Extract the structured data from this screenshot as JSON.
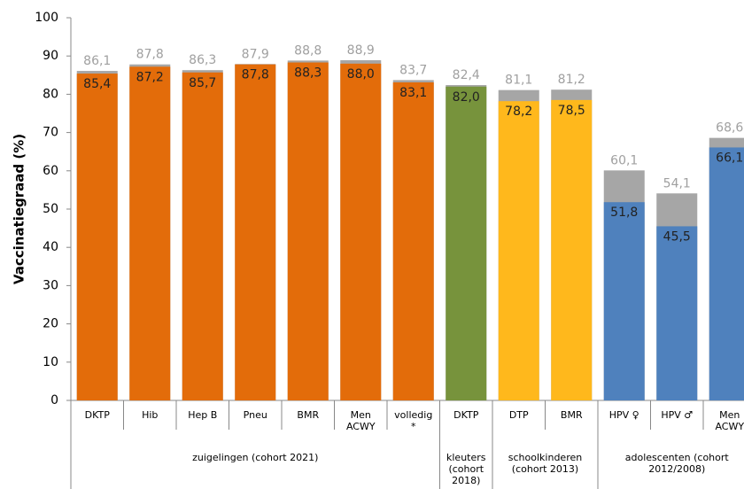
{
  "chart_data": {
    "type": "bar",
    "y_label": "Vaccinatiegraad (%)",
    "categories": [
      "DKTP",
      "Hib",
      "Hep B",
      "Pneu",
      "BMR",
      "Men ACWY",
      "volledig *",
      "DKTP",
      "DTP",
      "BMR",
      "HPV ♀",
      "HPV ♂",
      "Men ACWY"
    ],
    "groups": [
      {
        "label": "zuigelingen (cohort 2021)",
        "span": [
          0,
          6
        ]
      },
      {
        "label": "kleuters (cohort 2018)",
        "span": [
          7,
          7
        ]
      },
      {
        "label": "schoolkinderen (cohort 2013)",
        "span": [
          8,
          9
        ]
      },
      {
        "label": "adolescenten (cohort 2012/2008)",
        "span": [
          10,
          12
        ]
      }
    ],
    "values": [
      85.4,
      87.2,
      85.7,
      87.8,
      88.3,
      88.0,
      83.1,
      82.0,
      78.2,
      78.5,
      51.8,
      45.5,
      66.1
    ],
    "value_labels": [
      "85,4",
      "87,2",
      "85,7",
      "87,8",
      "88,3",
      "88,0",
      "83,1",
      "82,0",
      "78,2",
      "78,5",
      "51,8",
      "45,5",
      "66,1"
    ],
    "colors": [
      "#e36c0a",
      "#e36c0a",
      "#e36c0a",
      "#e36c0a",
      "#e36c0a",
      "#e36c0a",
      "#e36c0a",
      "#77933c",
      "#ffb81c",
      "#ffb81c",
      "#4f81bd",
      "#4f81bd",
      "#4f81bd"
    ],
    "gray_values": [
      86.1,
      87.8,
      86.3,
      87.9,
      88.8,
      88.9,
      83.7,
      82.4,
      81.1,
      81.2,
      60.1,
      54.1,
      68.6
    ],
    "gray_value_labels": [
      "86,1",
      "87,8",
      "86,3",
      "87,9",
      "88,8",
      "88,9",
      "83,7",
      "82,4",
      "81,1",
      "81,2",
      "60,1",
      "54,1",
      "68,6"
    ],
    "gray_color": "#a6a6a6",
    "ylim": [
      0,
      100
    ],
    "yticks": [
      0,
      10,
      20,
      30,
      40,
      50,
      60,
      70,
      80,
      90,
      100
    ]
  }
}
